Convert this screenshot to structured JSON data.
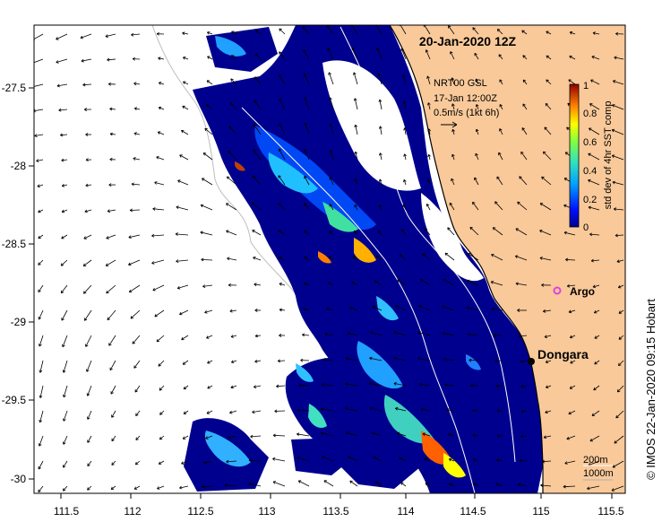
{
  "title": "20-Jan-2020 12Z",
  "current_legend": {
    "line1": "NRT00 GSL",
    "line2": "17-Jan 12:00Z",
    "line3": "0.5m/s (1kt 6h)"
  },
  "colorbar": {
    "label": "std dev of 4hr SST comp",
    "ticks": [
      "0",
      "0.2",
      "0.4",
      "0.6",
      "0.8",
      "1"
    ],
    "min": 0,
    "max": 1
  },
  "axes": {
    "x_ticks": [
      "111.5",
      "112",
      "112.5",
      "113",
      "113.5",
      "114",
      "114.5",
      "115",
      "115.5"
    ],
    "y_ticks": [
      "-27.5",
      "-28",
      "-28.5",
      "-29",
      "-29.5",
      "-30"
    ],
    "lon_range": [
      111.3,
      115.6
    ],
    "lat_range": [
      -30.1,
      -27.1
    ]
  },
  "places": [
    {
      "name": "Argo",
      "lon": 115.1,
      "lat": -28.82
    },
    {
      "name": "Dongara",
      "lon": 114.93,
      "lat": -29.25
    }
  ],
  "isobath_labels": {
    "a": "200m",
    "b": "1000m"
  },
  "credit": "© IMOS 22-Jan-2020 09:15 Hobart",
  "colors": {
    "land": "#f9c99a",
    "ocean_fill": "#00008f",
    "argo_marker": "#e040e0",
    "gap": "#ffffff"
  }
}
